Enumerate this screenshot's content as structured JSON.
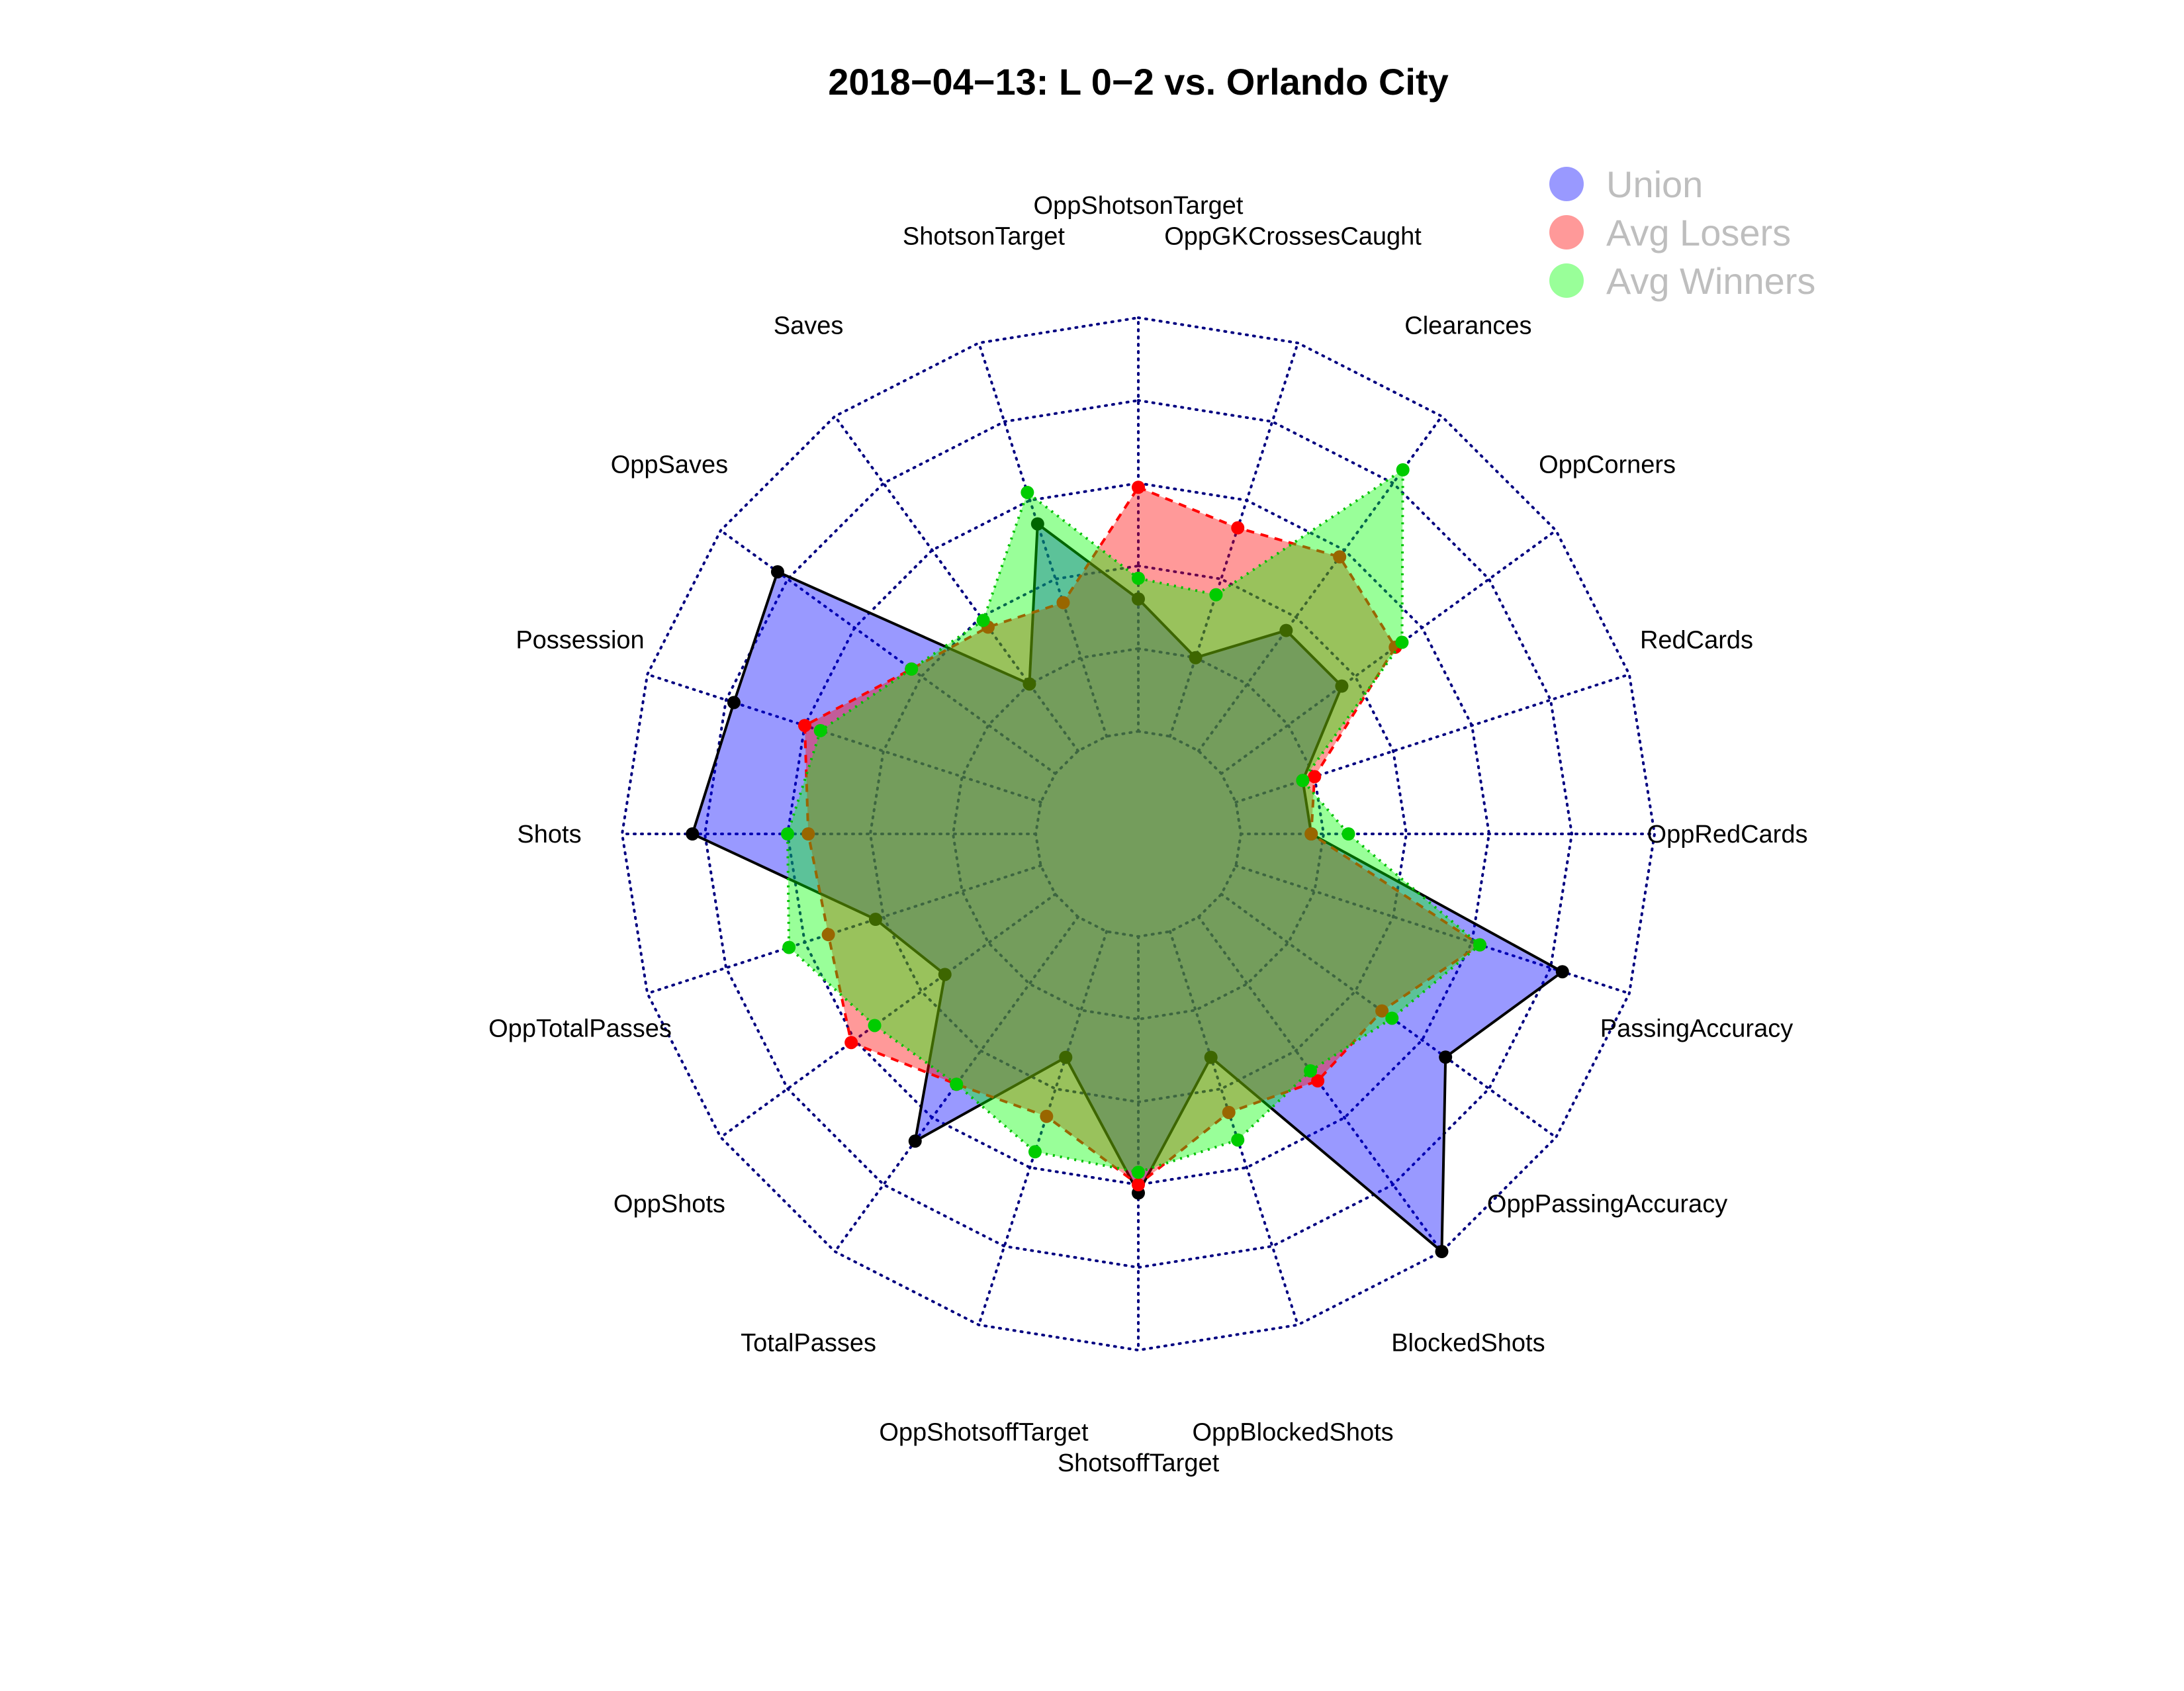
{
  "chart_data": {
    "type": "radar",
    "title": "2018−04−13:  L 0−2   vs. Orlando City",
    "axes": [
      "OppShotsonTarget",
      "OppGKCrossesCaught",
      "Clearances",
      "OppCorners",
      "RedCards",
      "OppRedCards",
      "PassingAccuracy",
      "OppPassingAccuracy",
      "BlockedShots",
      "OppBlockedShots",
      "ShotsoffTarget",
      "OppShotsoffTarget",
      "TotalPasses",
      "OppShots",
      "OppTotalPasses",
      "Shots",
      "Possession",
      "OppSaves",
      "Saves",
      "ShotsonTarget"
    ],
    "rlim": [
      0,
      1
    ],
    "rings": 6,
    "grid": true,
    "legend_position": "top-right",
    "series": [
      {
        "name": "Union",
        "color": "#0000ff",
        "values": [
          0.32,
          0.2,
          0.36,
          0.36,
          0.17,
          0.17,
          0.83,
          0.67,
          1.0,
          0.32,
          0.62,
          0.32,
          0.67,
          0.33,
          0.42,
          0.83,
          0.78,
          0.83,
          0.2,
          0.54
        ]
      },
      {
        "name": "Avg Losers",
        "color": "#ff0000",
        "values": [
          0.59,
          0.53,
          0.58,
          0.52,
          0.2,
          0.17,
          0.62,
          0.48,
          0.49,
          0.46,
          0.6,
          0.47,
          0.5,
          0.61,
          0.54,
          0.55,
          0.6,
          0.43,
          0.37,
          0.34
        ]
      },
      {
        "name": "Avg Winners",
        "color": "#00ff00",
        "values": [
          0.37,
          0.36,
          0.84,
          0.54,
          0.17,
          0.26,
          0.62,
          0.51,
          0.46,
          0.53,
          0.57,
          0.56,
          0.5,
          0.54,
          0.64,
          0.6,
          0.56,
          0.43,
          0.39,
          0.62
        ]
      }
    ]
  }
}
